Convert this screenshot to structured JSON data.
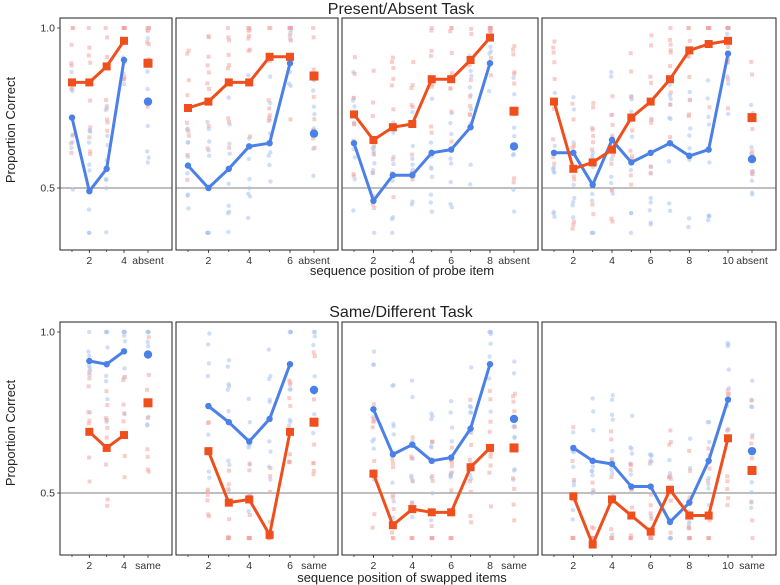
{
  "colors": {
    "blue": "#4a80e8",
    "red": "#ee4f1c",
    "blue_light": "#a9c4f0",
    "red_light": "#f3a5a0"
  },
  "chart_data": [
    {
      "type": "line",
      "title": "Present/Absent Task",
      "xlabel": "sequence position of probe item",
      "ylabel": "Proportion Correct",
      "ylim": [
        0.35,
        1.0
      ],
      "yticks": [
        "0.5",
        "1.0"
      ],
      "reference_line": 0.5,
      "panels": [
        {
          "n": 4,
          "xticks": [
            "2",
            "4"
          ],
          "end_label": "absent",
          "series": [
            {
              "name": "blue",
              "values": [
                0.72,
                0.49,
                0.56,
                0.9
              ],
              "end": 0.77
            },
            {
              "name": "red",
              "values": [
                0.83,
                0.83,
                0.88,
                0.96
              ],
              "end": 0.89
            }
          ]
        },
        {
          "n": 6,
          "xticks": [
            "2",
            "4",
            "6"
          ],
          "end_label": "absent",
          "series": [
            {
              "name": "blue",
              "values": [
                0.57,
                0.5,
                0.56,
                0.63,
                0.64,
                0.89
              ],
              "end": 0.67
            },
            {
              "name": "red",
              "values": [
                0.75,
                0.77,
                0.83,
                0.83,
                0.91,
                0.91
              ],
              "end": 0.85
            }
          ]
        },
        {
          "n": 8,
          "xticks": [
            "2",
            "4",
            "6",
            "8"
          ],
          "end_label": "absent",
          "series": [
            {
              "name": "blue",
              "values": [
                0.64,
                0.46,
                0.54,
                0.54,
                0.61,
                0.62,
                0.69,
                0.89
              ],
              "end": 0.63
            },
            {
              "name": "red",
              "values": [
                0.73,
                0.65,
                0.69,
                0.7,
                0.84,
                0.84,
                0.9,
                0.97
              ],
              "end": 0.74
            }
          ]
        },
        {
          "n": 10,
          "xticks": [
            "2",
            "4",
            "6",
            "8",
            "10"
          ],
          "end_label": "absent",
          "series": [
            {
              "name": "blue",
              "values": [
                0.61,
                0.61,
                0.51,
                0.65,
                0.58,
                0.61,
                0.64,
                0.6,
                0.62,
                0.92
              ],
              "end": 0.59
            },
            {
              "name": "red",
              "values": [
                0.77,
                0.56,
                0.58,
                0.62,
                0.72,
                0.77,
                0.84,
                0.93,
                0.95,
                0.96
              ],
              "end": 0.72
            }
          ]
        }
      ]
    },
    {
      "type": "line",
      "title": "Same/Different Task",
      "xlabel": "sequence position of swapped items",
      "ylabel": "Proportion Correct",
      "ylim": [
        0.35,
        1.0
      ],
      "yticks": [
        "0.5",
        "1.0"
      ],
      "reference_line": 0.5,
      "panels": [
        {
          "n": 4,
          "xticks": [
            "2",
            "4"
          ],
          "end_label": "same",
          "series": [
            {
              "name": "blue",
              "values": [
                null,
                0.91,
                0.9,
                0.94
              ],
              "end": 0.93
            },
            {
              "name": "red",
              "values": [
                null,
                0.69,
                0.64,
                0.68
              ],
              "end": 0.78
            }
          ]
        },
        {
          "n": 6,
          "xticks": [
            "2",
            "4",
            "6"
          ],
          "end_label": "same",
          "series": [
            {
              "name": "blue",
              "values": [
                null,
                0.77,
                0.72,
                0.66,
                0.73,
                0.9
              ],
              "end": 0.82
            },
            {
              "name": "red",
              "values": [
                null,
                0.63,
                0.47,
                0.48,
                0.37,
                0.69
              ],
              "end": 0.72
            }
          ]
        },
        {
          "n": 8,
          "xticks": [
            "2",
            "4",
            "6",
            "8"
          ],
          "end_label": "same",
          "series": [
            {
              "name": "blue",
              "values": [
                null,
                0.76,
                0.62,
                0.65,
                0.6,
                0.61,
                0.7,
                0.9
              ],
              "end": 0.73
            },
            {
              "name": "red",
              "values": [
                null,
                0.56,
                0.4,
                0.45,
                0.44,
                0.44,
                0.58,
                0.64
              ],
              "end": 0.64
            }
          ]
        },
        {
          "n": 10,
          "xticks": [
            "2",
            "4",
            "6",
            "8",
            "10"
          ],
          "end_label": "same",
          "series": [
            {
              "name": "blue",
              "values": [
                null,
                0.64,
                0.6,
                0.59,
                0.52,
                0.52,
                0.41,
                0.47,
                0.6,
                0.79
              ],
              "end": 0.63
            },
            {
              "name": "red",
              "values": [
                null,
                0.49,
                0.34,
                0.48,
                0.43,
                0.38,
                0.51,
                0.43,
                0.43,
                0.67
              ],
              "end": 0.57
            }
          ]
        }
      ]
    }
  ]
}
